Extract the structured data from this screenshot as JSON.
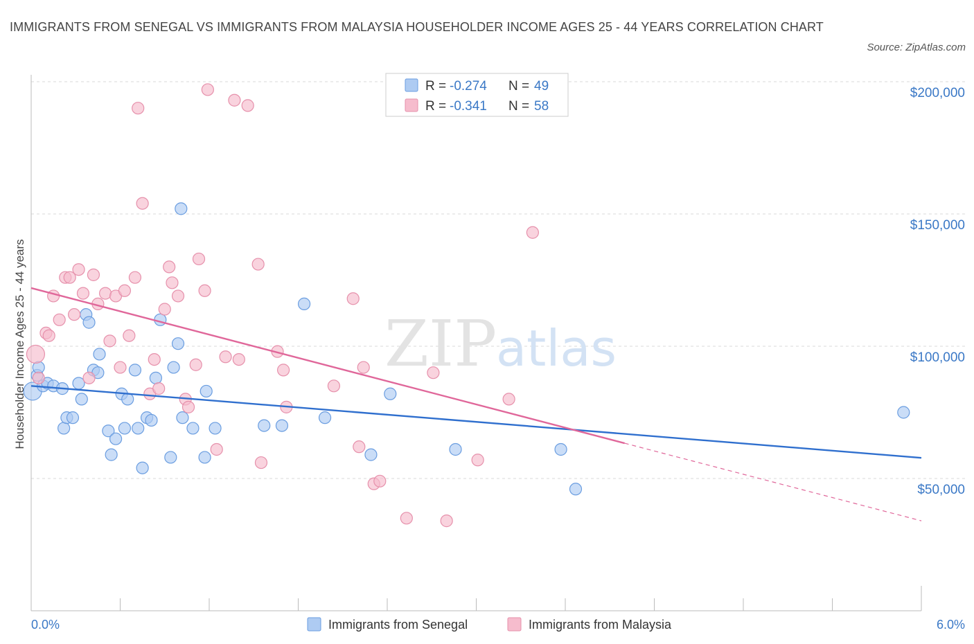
{
  "title": "IMMIGRANTS FROM SENEGAL VS IMMIGRANTS FROM MALAYSIA HOUSEHOLDER INCOME AGES 25 - 44 YEARS CORRELATION CHART",
  "source": "Source: ZipAtlas.com",
  "watermark": {
    "zip": "ZIP",
    "atlas": "atlas"
  },
  "colors": {
    "senegal_fill": "#aecbf2",
    "senegal_stroke": "#6a9de0",
    "senegal_line": "#2f6fce",
    "malaysia_fill": "#f6bccd",
    "malaysia_stroke": "#e690ab",
    "malaysia_line": "#e0679a",
    "grid": "#d9d9d9",
    "tick_text": "#3a78c6"
  },
  "legend": {
    "r_label": "R =",
    "n_label": "N =",
    "series": [
      {
        "r": "-0.274",
        "n": "49"
      },
      {
        "r": "-0.341",
        "n": "58"
      }
    ]
  },
  "chart_data": {
    "type": "scatter",
    "title": "IMMIGRANTS FROM SENEGAL VS IMMIGRANTS FROM MALAYSIA HOUSEHOLDER INCOME AGES 25 - 44 YEARS CORRELATION CHART",
    "xlabel": "",
    "ylabel": "Householder Income Ages 25 - 44 years",
    "xlim": [
      0.0,
      6.0
    ],
    "ylim": [
      0,
      215000
    ],
    "x_tick_labels": [
      "0.0%",
      "6.0%"
    ],
    "y_ticks": [
      50000,
      100000,
      150000,
      200000
    ],
    "y_tick_labels": [
      "$50,000",
      "$100,000",
      "$150,000",
      "$200,000"
    ],
    "grid": true,
    "legend_position": "top-center and bottom",
    "series": [
      {
        "name": "Immigrants from Senegal",
        "color": "#6a9de0",
        "trend": {
          "x": [
            0.0,
            6.0
          ],
          "y": [
            85000,
            57800
          ],
          "dashed_from": null
        },
        "points": [
          [
            0.01,
            83000
          ],
          [
            0.04,
            89000
          ],
          [
            0.05,
            92000
          ],
          [
            0.08,
            85000
          ],
          [
            0.11,
            86000
          ],
          [
            0.15,
            85000
          ],
          [
            0.21,
            84000
          ],
          [
            0.22,
            69000
          ],
          [
            0.24,
            73000
          ],
          [
            0.28,
            73000
          ],
          [
            0.32,
            86000
          ],
          [
            0.34,
            80000
          ],
          [
            0.37,
            112000
          ],
          [
            0.39,
            109000
          ],
          [
            0.42,
            91000
          ],
          [
            0.45,
            90000
          ],
          [
            0.46,
            97000
          ],
          [
            0.52,
            68000
          ],
          [
            0.54,
            59000
          ],
          [
            0.57,
            65000
          ],
          [
            0.61,
            82000
          ],
          [
            0.63,
            69000
          ],
          [
            0.65,
            80000
          ],
          [
            0.7,
            91000
          ],
          [
            0.72,
            69000
          ],
          [
            0.75,
            54000
          ],
          [
            0.78,
            73000
          ],
          [
            0.81,
            72000
          ],
          [
            0.84,
            88000
          ],
          [
            0.87,
            110000
          ],
          [
            0.94,
            58000
          ],
          [
            0.96,
            92000
          ],
          [
            0.99,
            101000
          ],
          [
            1.01,
            152000
          ],
          [
            1.02,
            73000
          ],
          [
            1.09,
            69000
          ],
          [
            1.17,
            58000
          ],
          [
            1.18,
            83000
          ],
          [
            1.24,
            69000
          ],
          [
            1.57,
            70000
          ],
          [
            1.69,
            70000
          ],
          [
            1.84,
            116000
          ],
          [
            1.98,
            73000
          ],
          [
            2.29,
            59000
          ],
          [
            2.42,
            82000
          ],
          [
            2.86,
            61000
          ],
          [
            3.57,
            61000
          ],
          [
            3.67,
            46000
          ],
          [
            5.88,
            75000
          ]
        ]
      },
      {
        "name": "Immigrants from Malaysia",
        "color": "#e690ab",
        "trend": {
          "x": [
            0.0,
            6.0
          ],
          "y": [
            122000,
            34000
          ],
          "dashed_from": 4.0
        },
        "points": [
          [
            0.03,
            97000
          ],
          [
            0.05,
            88000
          ],
          [
            0.1,
            105000
          ],
          [
            0.12,
            104000
          ],
          [
            0.15,
            119000
          ],
          [
            0.19,
            110000
          ],
          [
            0.23,
            126000
          ],
          [
            0.26,
            126000
          ],
          [
            0.29,
            112000
          ],
          [
            0.32,
            129000
          ],
          [
            0.35,
            120000
          ],
          [
            0.39,
            88000
          ],
          [
            0.42,
            127000
          ],
          [
            0.45,
            116000
          ],
          [
            0.5,
            120000
          ],
          [
            0.53,
            102000
          ],
          [
            0.57,
            119000
          ],
          [
            0.6,
            92000
          ],
          [
            0.63,
            121000
          ],
          [
            0.66,
            104000
          ],
          [
            0.7,
            126000
          ],
          [
            0.72,
            190000
          ],
          [
            0.75,
            154000
          ],
          [
            0.8,
            82000
          ],
          [
            0.83,
            95000
          ],
          [
            0.86,
            84000
          ],
          [
            0.9,
            114000
          ],
          [
            0.93,
            130000
          ],
          [
            0.95,
            124000
          ],
          [
            0.99,
            119000
          ],
          [
            1.04,
            80000
          ],
          [
            1.06,
            77000
          ],
          [
            1.11,
            93000
          ],
          [
            1.13,
            133000
          ],
          [
            1.17,
            121000
          ],
          [
            1.19,
            197000
          ],
          [
            1.25,
            61000
          ],
          [
            1.31,
            96000
          ],
          [
            1.37,
            193000
          ],
          [
            1.4,
            95000
          ],
          [
            1.46,
            191000
          ],
          [
            1.53,
            131000
          ],
          [
            1.55,
            56000
          ],
          [
            1.66,
            98000
          ],
          [
            1.7,
            91000
          ],
          [
            1.72,
            77000
          ],
          [
            2.04,
            85000
          ],
          [
            2.17,
            118000
          ],
          [
            2.21,
            62000
          ],
          [
            2.24,
            92000
          ],
          [
            2.31,
            48000
          ],
          [
            2.35,
            49000
          ],
          [
            2.53,
            35000
          ],
          [
            2.71,
            90000
          ],
          [
            2.8,
            34000
          ],
          [
            3.01,
            57000
          ],
          [
            3.22,
            80000
          ],
          [
            3.38,
            143000
          ]
        ]
      }
    ]
  },
  "bottom_legend": [
    "Immigrants from Senegal",
    "Immigrants from Malaysia"
  ]
}
